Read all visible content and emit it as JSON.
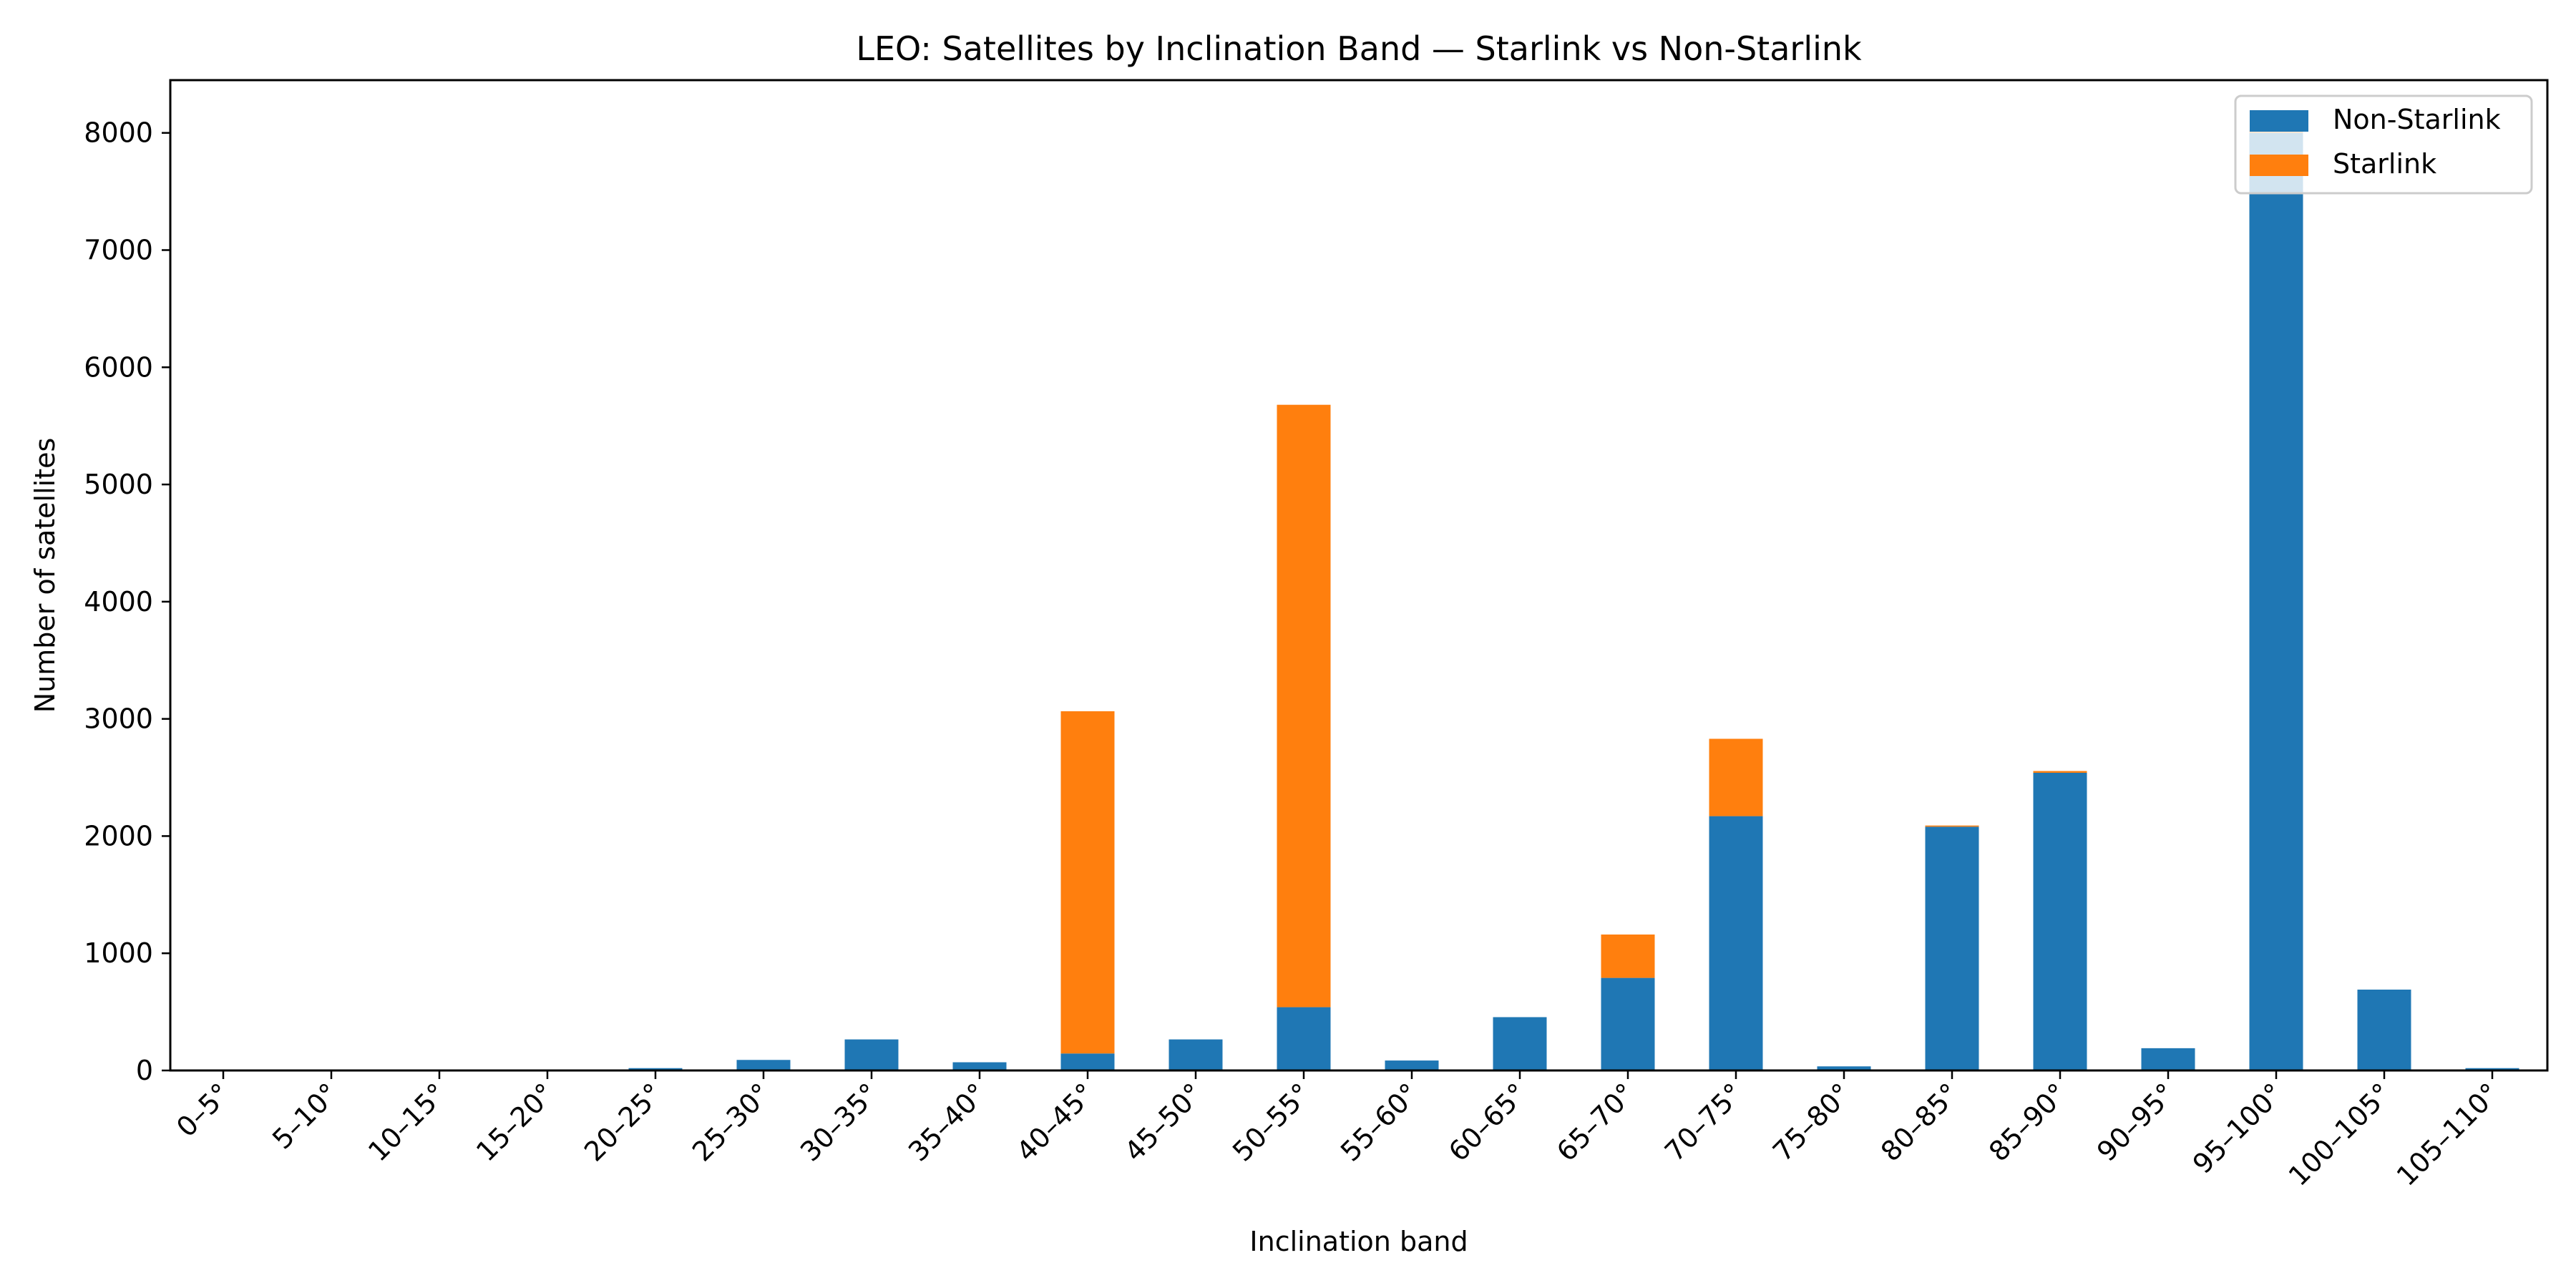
{
  "chart_data": {
    "type": "bar",
    "stacked": true,
    "title": "LEO: Satellites by Inclination Band — Starlink vs Non-Starlink",
    "xlabel": "Inclination band",
    "ylabel": "Number of satellites",
    "ylim": [
      0,
      8450
    ],
    "yticks": [
      0,
      1000,
      2000,
      3000,
      4000,
      5000,
      6000,
      7000,
      8000
    ],
    "categories": [
      "0–5°",
      "5–10°",
      "10–15°",
      "15–20°",
      "20–25°",
      "25–30°",
      "30–35°",
      "35–40°",
      "40–45°",
      "45–50°",
      "50–55°",
      "55–60°",
      "60–65°",
      "65–70°",
      "70–75°",
      "75–80°",
      "80–85°",
      "85–90°",
      "90–95°",
      "95–100°",
      "100–105°",
      "105–110°"
    ],
    "series": [
      {
        "name": "Non-Starlink",
        "color": "#1f77b4",
        "values": [
          2,
          8,
          2,
          4,
          20,
          90,
          265,
          70,
          145,
          265,
          540,
          85,
          455,
          790,
          2170,
          35,
          2080,
          2540,
          190,
          8000,
          690,
          20
        ]
      },
      {
        "name": "Starlink",
        "color": "#ff7f0e",
        "values": [
          0,
          0,
          0,
          0,
          0,
          0,
          0,
          0,
          2920,
          0,
          5140,
          0,
          0,
          370,
          660,
          0,
          10,
          15,
          0,
          20,
          0,
          0
        ]
      }
    ],
    "legend": {
      "position": "top-right"
    },
    "grid": false
  }
}
